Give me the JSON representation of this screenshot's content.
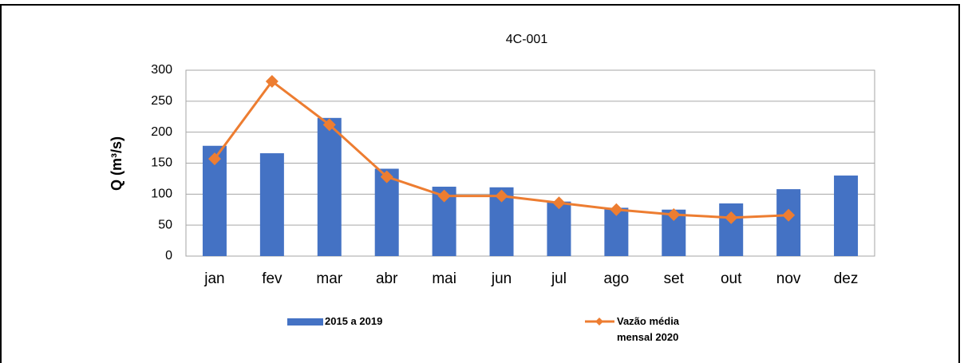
{
  "chart_data": {
    "type": "bar",
    "title": "4C-001",
    "ylabel": "Q (m³/s)",
    "categories": [
      "jan",
      "fev",
      "mar",
      "abr",
      "mai",
      "jun",
      "jul",
      "ago",
      "set",
      "out",
      "nov",
      "dez"
    ],
    "series": [
      {
        "name": "2015 a 2019",
        "type": "bar",
        "color": "#4472c4",
        "values": [
          178,
          166,
          223,
          141,
          112,
          111,
          88,
          78,
          75,
          85,
          108,
          130
        ]
      },
      {
        "name": "Vazão média mensal 2020",
        "type": "line",
        "color": "#ed7d31",
        "values": [
          157,
          282,
          212,
          128,
          97,
          97,
          86,
          75,
          67,
          62,
          66,
          null
        ]
      }
    ],
    "ylim": [
      0,
      300
    ],
    "yticks": [
      0,
      50,
      100,
      150,
      200,
      250,
      300
    ],
    "grid": true,
    "legend": "bottom"
  }
}
